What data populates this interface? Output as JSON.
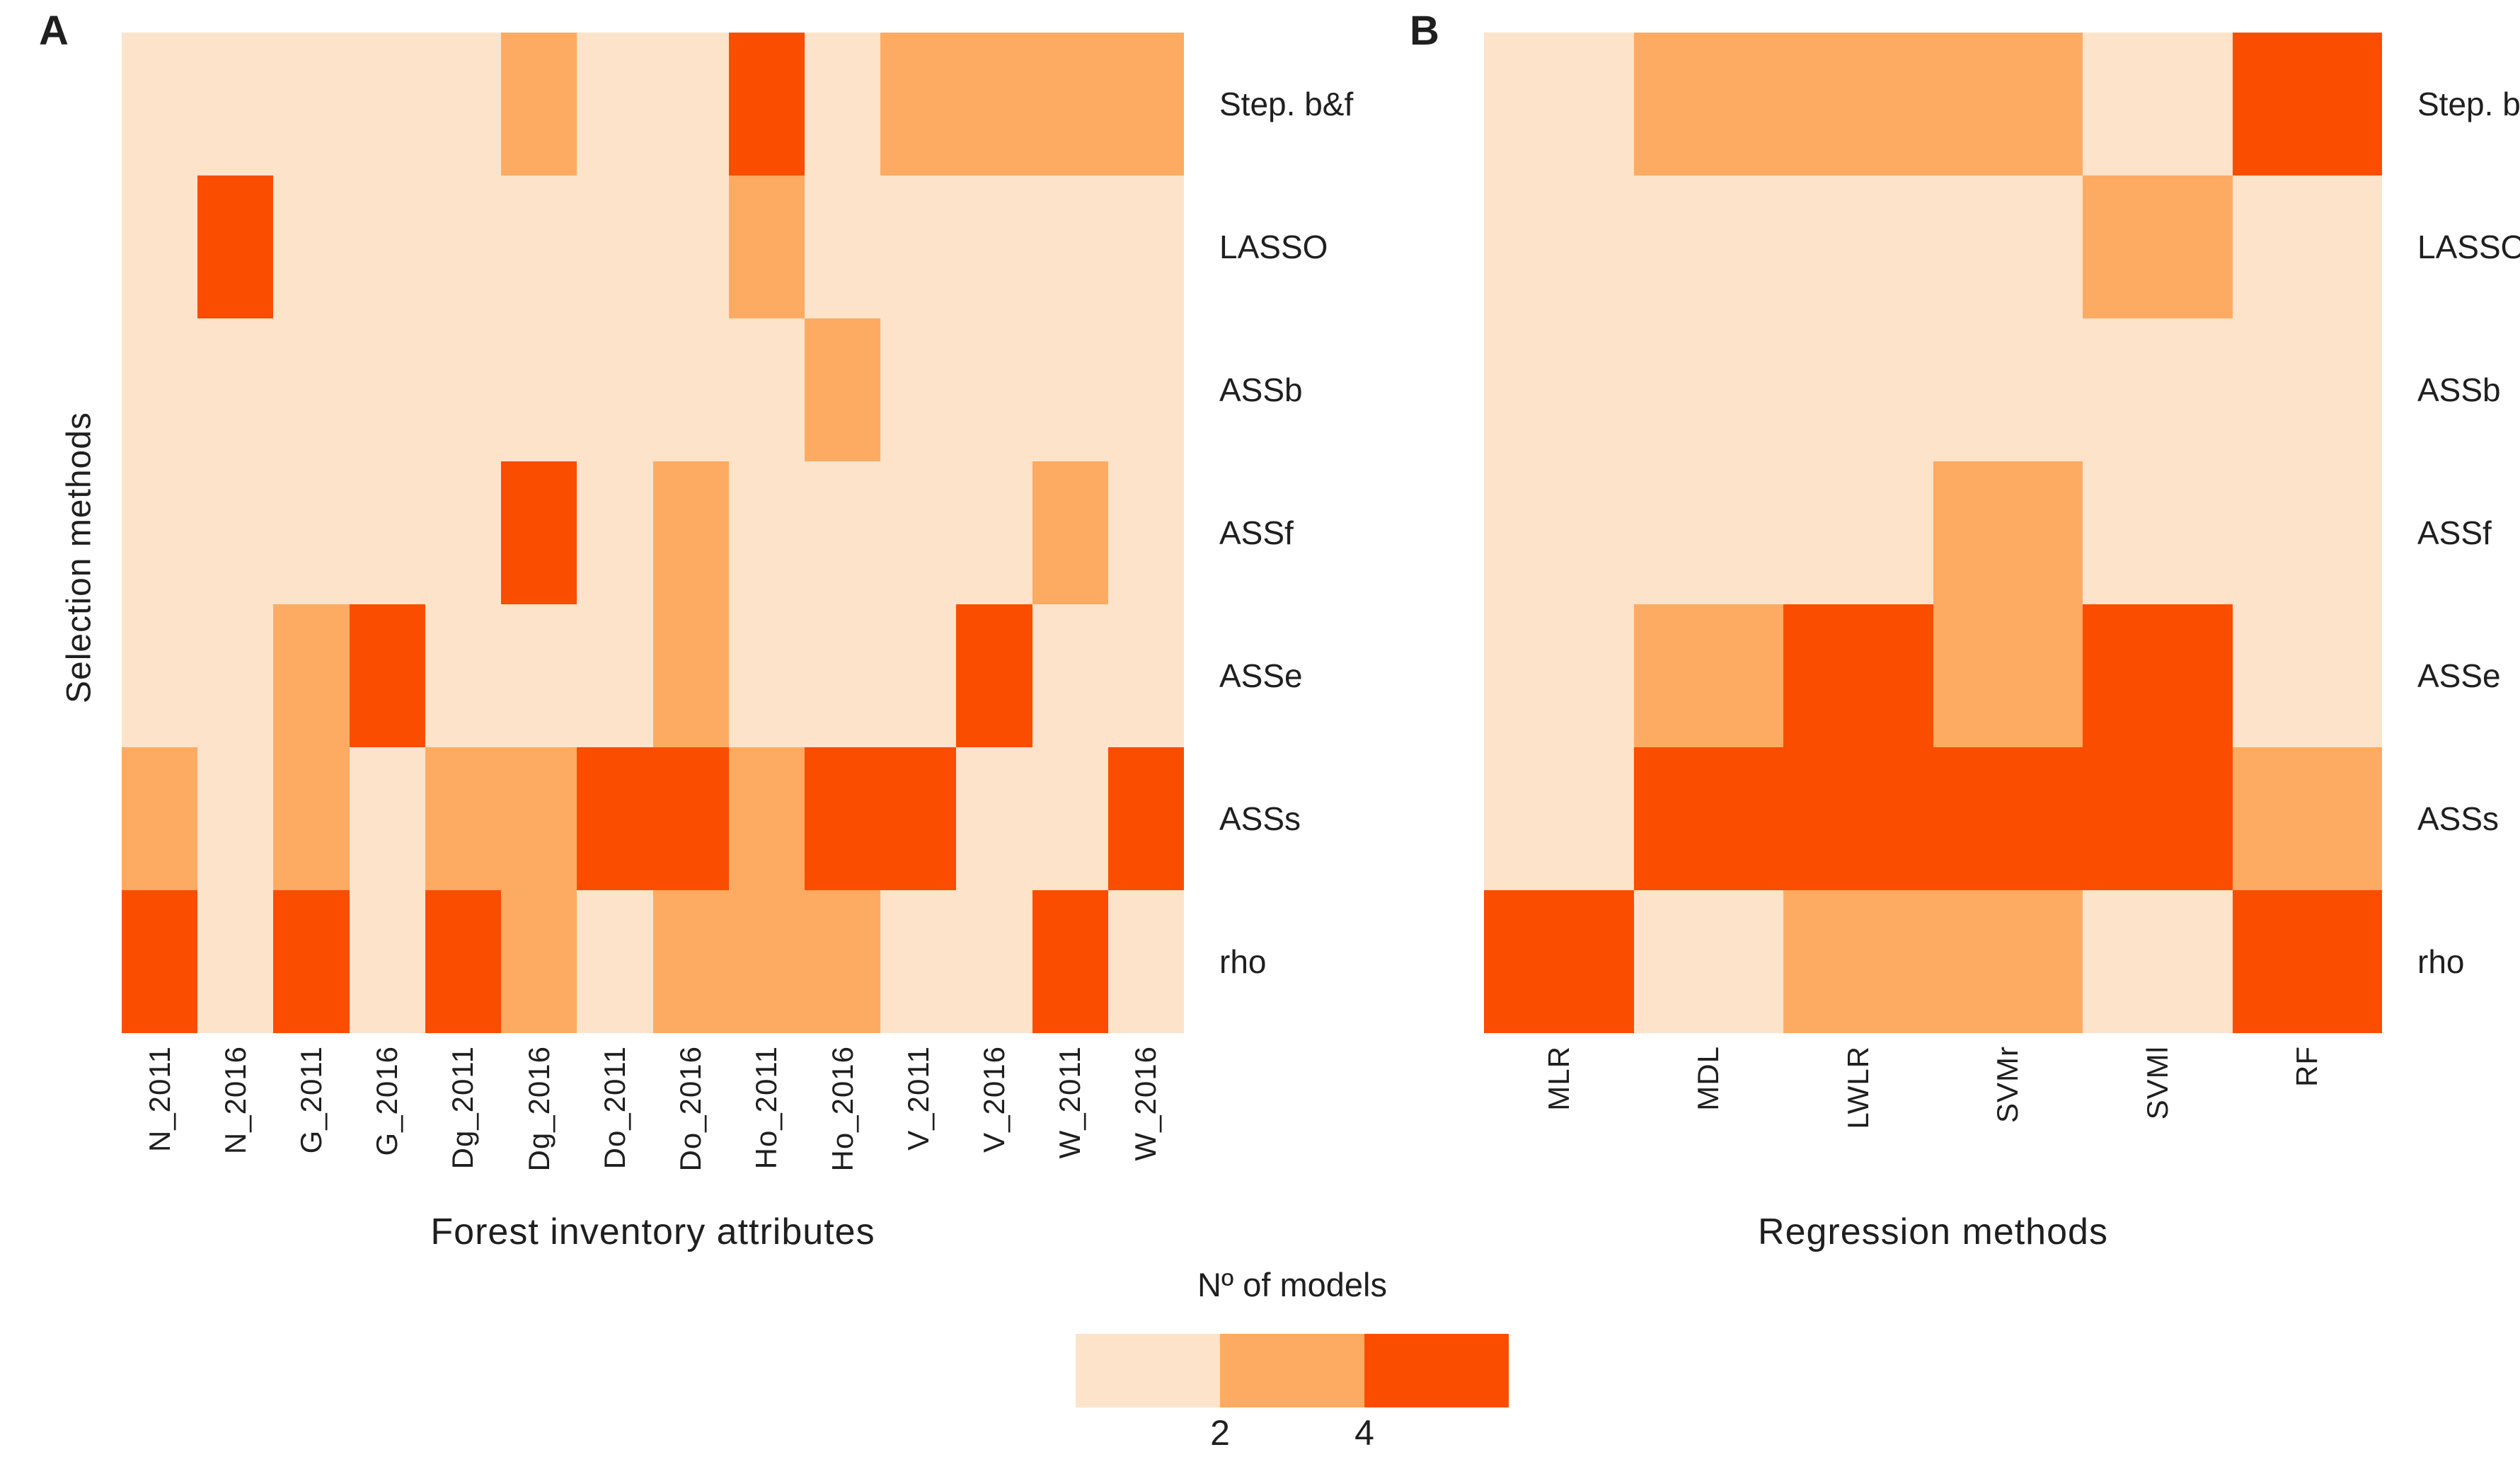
{
  "figure": {
    "background": "#ffffff",
    "y_axis_title": "Selection methods",
    "panel_a": {
      "letter": "A",
      "x_title": "Forest inventory attributes"
    },
    "panel_b": {
      "letter": "B",
      "x_title": "Regression methods"
    }
  },
  "legend": {
    "title": "Nº of models",
    "tick_labels": [
      "2",
      "4"
    ],
    "colors": [
      "#fce3ca",
      "#fdab62",
      "#fa4d00"
    ],
    "color_meaning": {
      "1": "0-2 models",
      "2": "2-4 models",
      "3": "4-6 models"
    },
    "position": "bottom-center"
  },
  "chart_data": [
    {
      "type": "heatmap",
      "panel": "A",
      "xlabel": "Forest inventory attributes",
      "ylabel": "Selection methods",
      "legend_title": "Nº of models",
      "legend_ticks": [
        2,
        4
      ],
      "x_categories": [
        "N_2011",
        "N_2016",
        "G_2011",
        "G_2016",
        "Dg_2011",
        "Dg_2016",
        "Do_2011",
        "Do_2016",
        "Ho_2011",
        "Ho_2016",
        "V_2011",
        "V_2016",
        "W_2011",
        "W_2016"
      ],
      "y_categories": [
        "Step. b&f",
        "LASSO",
        "ASSb",
        "ASSf",
        "ASSe",
        "ASSs",
        "rho"
      ],
      "value_bins": {
        "1": "low (0-2)",
        "2": "mid (2-4)",
        "3": "high (4-6)"
      },
      "values": [
        [
          1,
          1,
          1,
          1,
          1,
          2,
          1,
          1,
          3,
          1,
          2,
          2,
          2,
          2
        ],
        [
          1,
          3,
          1,
          1,
          1,
          1,
          1,
          1,
          2,
          1,
          1,
          1,
          1,
          1
        ],
        [
          1,
          1,
          1,
          1,
          1,
          1,
          1,
          1,
          1,
          2,
          1,
          1,
          1,
          1
        ],
        [
          1,
          1,
          1,
          1,
          1,
          3,
          1,
          2,
          1,
          1,
          1,
          1,
          2,
          1
        ],
        [
          1,
          1,
          2,
          3,
          1,
          1,
          1,
          2,
          1,
          1,
          1,
          3,
          1,
          1
        ],
        [
          2,
          1,
          2,
          1,
          2,
          2,
          3,
          3,
          2,
          3,
          3,
          1,
          1,
          3
        ],
        [
          3,
          1,
          3,
          1,
          3,
          2,
          1,
          2,
          2,
          2,
          1,
          1,
          3,
          1
        ]
      ]
    },
    {
      "type": "heatmap",
      "panel": "B",
      "xlabel": "Regression methods",
      "ylabel": "Selection methods",
      "legend_title": "Nº of models",
      "legend_ticks": [
        2,
        4
      ],
      "x_categories": [
        "MLR",
        "MDL",
        "LWLR",
        "SVMr",
        "SVMl",
        "RF"
      ],
      "y_categories": [
        "Step. b&f",
        "LASSO",
        "ASSb",
        "ASSf",
        "ASSe",
        "ASSs",
        "rho"
      ],
      "value_bins": {
        "1": "low (0-2)",
        "2": "mid (2-4)",
        "3": "high (4-6)"
      },
      "values": [
        [
          1,
          2,
          2,
          2,
          1,
          3
        ],
        [
          1,
          1,
          1,
          1,
          2,
          1
        ],
        [
          1,
          1,
          1,
          1,
          1,
          1
        ],
        [
          1,
          1,
          1,
          2,
          1,
          1
        ],
        [
          1,
          2,
          3,
          2,
          3,
          1
        ],
        [
          1,
          3,
          3,
          3,
          3,
          2
        ],
        [
          3,
          1,
          2,
          2,
          1,
          3
        ]
      ]
    }
  ]
}
